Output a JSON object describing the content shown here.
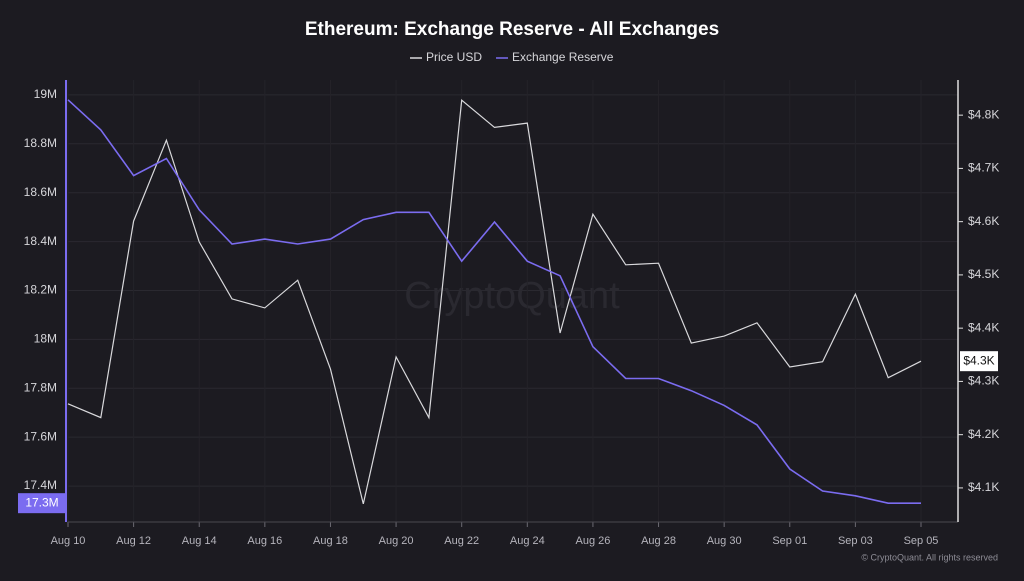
{
  "chart_data": {
    "type": "line",
    "title": "Ethereum: Exchange Reserve - All Exchanges",
    "watermark": "CryptoQuant",
    "footer": "© CryptoQuant. All rights reserved",
    "categories": [
      "Aug 10",
      null,
      "Aug 12",
      null,
      "Aug 14",
      null,
      "Aug 16",
      null,
      "Aug 18",
      null,
      "Aug 20",
      null,
      "Aug 22",
      null,
      "Aug 24",
      null,
      "Aug 26",
      null,
      "Aug 28",
      null,
      "Aug 30",
      null,
      "Sep 01",
      null,
      "Sep 03",
      null,
      "Sep 05"
    ],
    "series": [
      {
        "name": "Price USD",
        "color": "#d9d9dc",
        "axis": "y2",
        "last_label": "$4.3K",
        "values": [
          4258,
          4232,
          4601,
          4753,
          4562,
          4455,
          4438,
          4490,
          4323,
          4070,
          4346,
          4232,
          4828,
          4777,
          4785,
          4391,
          4614,
          4519,
          4522,
          4372,
          4385,
          4410,
          4327,
          4337,
          4464,
          4307,
          4338
        ]
      },
      {
        "name": "Exchange Reserve",
        "color": "#7b6cf0",
        "axis": "y",
        "last_label": "17.3M",
        "values": [
          18.98,
          18.857,
          18.67,
          18.74,
          18.53,
          18.39,
          18.41,
          18.39,
          18.41,
          18.49,
          18.52,
          18.52,
          18.32,
          18.48,
          18.32,
          18.26,
          17.97,
          17.84,
          17.84,
          17.79,
          17.73,
          17.65,
          17.47,
          17.38,
          17.36,
          17.33,
          17.33
        ]
      }
    ],
    "ylim": [
      17.253,
      19.061
    ],
    "yticks": [
      {
        "value": 17.4,
        "label": "17.4M"
      },
      {
        "value": 17.6,
        "label": "17.6M"
      },
      {
        "value": 17.8,
        "label": "17.8M"
      },
      {
        "value": 18,
        "label": "18M"
      },
      {
        "value": 18.2,
        "label": "18.2M"
      },
      {
        "value": 18.4,
        "label": "18.4M"
      },
      {
        "value": 18.6,
        "label": "18.6M"
      },
      {
        "value": 18.8,
        "label": "18.8M"
      },
      {
        "value": 19,
        "label": "19M"
      }
    ],
    "y2lim": [
      4036,
      4866
    ],
    "y2ticks": [
      {
        "value": 4100,
        "label": "$4.1K"
      },
      {
        "value": 4200,
        "label": "$4.2K"
      },
      {
        "value": 4300,
        "label": "$4.3K"
      },
      {
        "value": 4400,
        "label": "$4.4K"
      },
      {
        "value": 4500,
        "label": "$4.5K"
      },
      {
        "value": 4600,
        "label": "$4.6K"
      },
      {
        "value": 4700,
        "label": "$4.7K"
      },
      {
        "value": 4800,
        "label": "$4.8K"
      }
    ],
    "grid": true,
    "legend": "top"
  }
}
